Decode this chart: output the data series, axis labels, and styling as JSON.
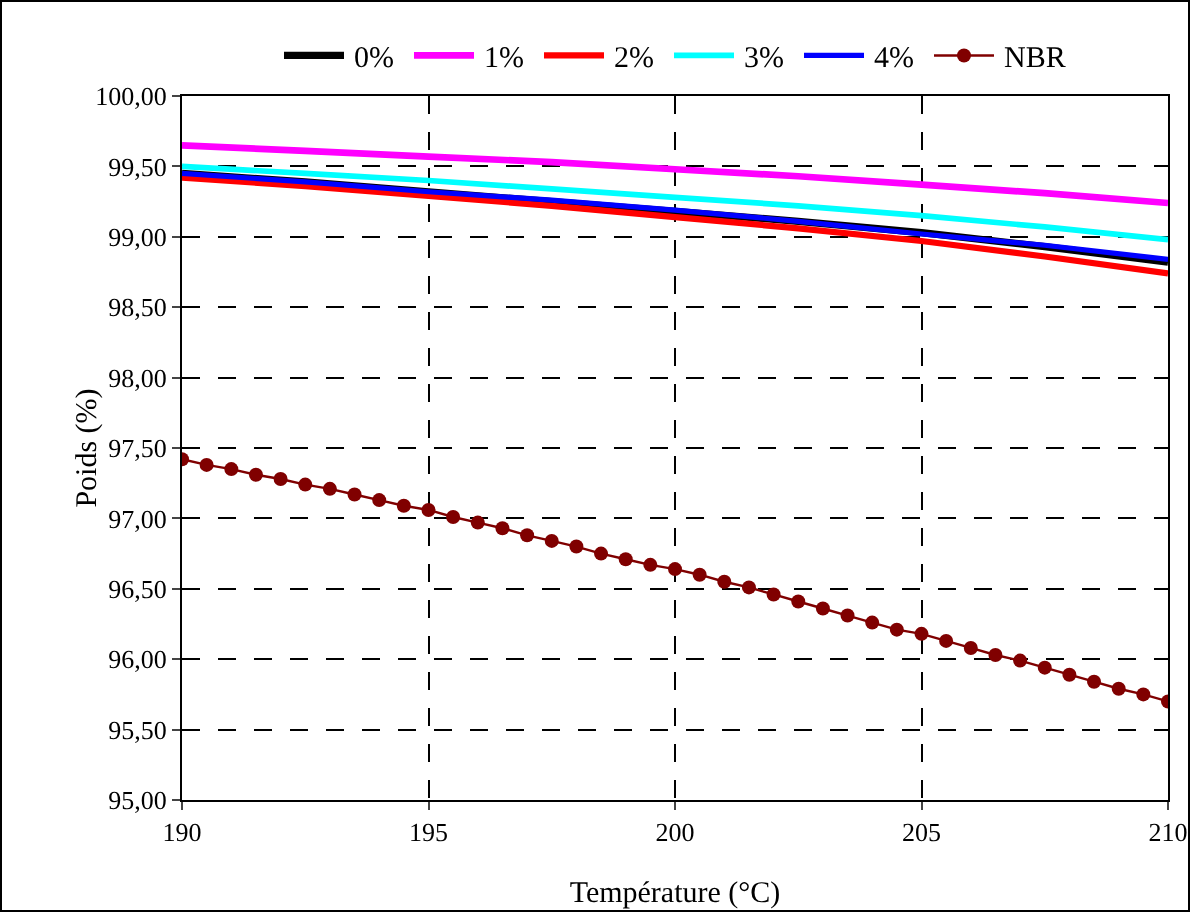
{
  "chart_data": {
    "type": "line",
    "xlabel": "Température (°C)",
    "ylabel": "Poids (%)",
    "xlim": [
      190,
      210
    ],
    "xticks": [
      190,
      195,
      200,
      205,
      210
    ],
    "ylim": [
      95,
      100
    ],
    "yticks": [
      {
        "value": 95,
        "label": "95,00"
      },
      {
        "value": 95.5,
        "label": "95,50"
      },
      {
        "value": 96,
        "label": "96,00"
      },
      {
        "value": 96.5,
        "label": "96,50"
      },
      {
        "value": 97,
        "label": "97,00"
      },
      {
        "value": 97.5,
        "label": "97,50"
      },
      {
        "value": 98,
        "label": "98,00"
      },
      {
        "value": 98.5,
        "label": "98,50"
      },
      {
        "value": 99,
        "label": "99,00"
      },
      {
        "value": 99.5,
        "label": "99,50"
      },
      {
        "value": 100,
        "label": "100,00"
      }
    ],
    "grid": true,
    "legend": "top",
    "marker": "none",
    "line_style": "solid",
    "x": [
      190,
      192.5,
      195,
      197.5,
      200,
      202.5,
      205,
      207.5,
      210
    ],
    "series": [
      {
        "name": "0%",
        "color": "#000000",
        "values": [
          99.45,
          99.39,
          99.32,
          99.25,
          99.18,
          99.11,
          99.03,
          98.93,
          98.82
        ]
      },
      {
        "name": "1%",
        "color": "#ff00ff",
        "values": [
          99.65,
          99.61,
          99.57,
          99.53,
          99.48,
          99.43,
          99.37,
          99.31,
          99.24
        ]
      },
      {
        "name": "2%",
        "color": "#ff0000",
        "values": [
          99.42,
          99.36,
          99.29,
          99.22,
          99.14,
          99.06,
          98.97,
          98.86,
          98.74
        ]
      },
      {
        "name": "3%",
        "color": "#00ffff",
        "values": [
          99.5,
          99.45,
          99.4,
          99.34,
          99.28,
          99.22,
          99.15,
          99.07,
          98.98
        ]
      },
      {
        "name": "4%",
        "color": "#0000ff",
        "values": [
          99.45,
          99.39,
          99.32,
          99.26,
          99.19,
          99.11,
          99.02,
          98.94,
          98.84
        ]
      },
      {
        "name": "NBR",
        "color": "#800000",
        "marker": "circle",
        "x": [
          190,
          190.5,
          191,
          191.5,
          192,
          192.5,
          193,
          193.5,
          194,
          194.5,
          195,
          195.5,
          196,
          196.5,
          197,
          197.5,
          198,
          198.5,
          199,
          199.5,
          200,
          200.5,
          201,
          201.5,
          202,
          202.5,
          203,
          203.5,
          204,
          204.5,
          205,
          205.5,
          206,
          206.5,
          207,
          207.5,
          208,
          208.5,
          209,
          209.5,
          210
        ],
        "values": [
          97.42,
          97.38,
          97.35,
          97.31,
          97.28,
          97.24,
          97.21,
          97.17,
          97.13,
          97.09,
          97.06,
          97.01,
          96.97,
          96.93,
          96.88,
          96.84,
          96.8,
          96.75,
          96.71,
          96.67,
          96.64,
          96.6,
          96.55,
          96.51,
          96.46,
          96.41,
          96.36,
          96.31,
          96.26,
          96.21,
          96.18,
          96.13,
          96.08,
          96.03,
          95.99,
          95.94,
          95.89,
          95.84,
          95.79,
          95.75,
          95.7
        ]
      }
    ]
  }
}
